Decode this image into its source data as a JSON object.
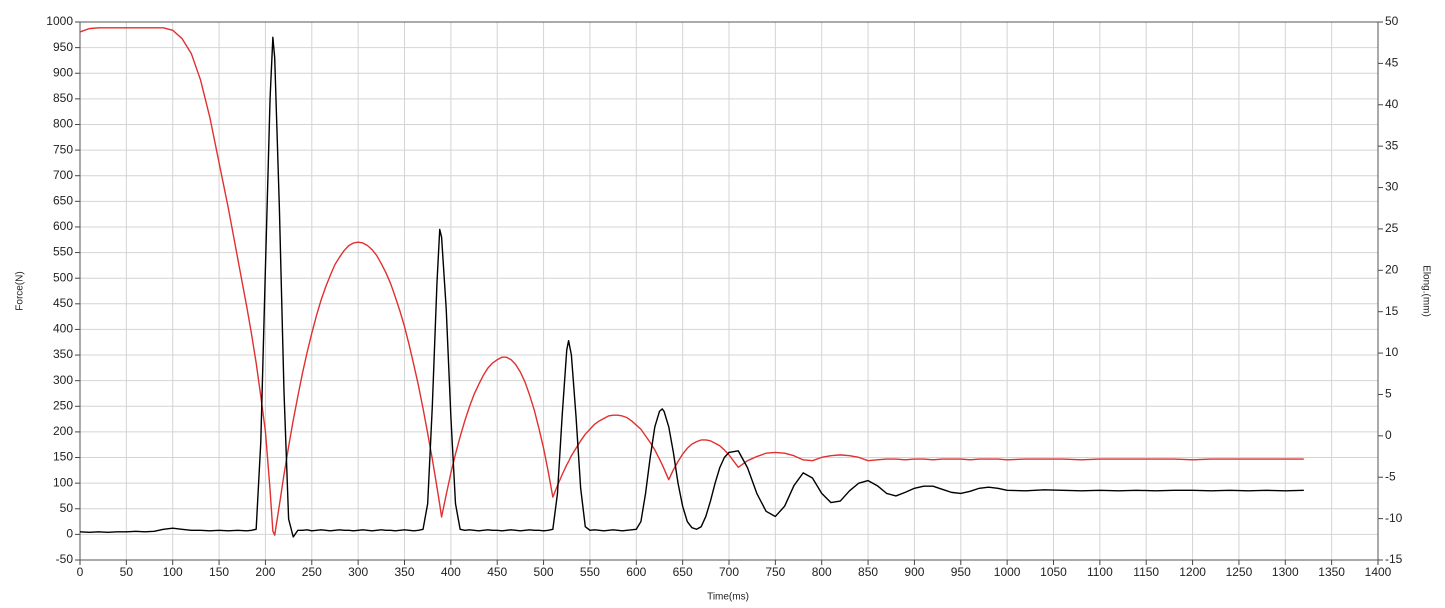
{
  "chart_data": {
    "type": "line",
    "xlabel": "Time(ms)",
    "ylabel": "Force(N)",
    "y2label": "Elong.(mm)",
    "x": [
      0,
      10,
      20,
      30,
      40,
      50,
      60,
      70,
      80,
      90,
      100,
      110,
      120,
      130,
      140,
      150,
      160,
      170,
      180,
      185,
      190,
      195,
      200,
      205,
      208,
      210,
      215,
      220,
      225,
      230,
      235,
      240,
      245,
      250,
      255,
      260,
      265,
      270,
      275,
      280,
      285,
      290,
      295,
      300,
      305,
      310,
      315,
      320,
      325,
      330,
      335,
      340,
      345,
      350,
      355,
      360,
      365,
      370,
      375,
      380,
      385,
      388,
      390,
      395,
      400,
      405,
      410,
      415,
      420,
      425,
      430,
      435,
      440,
      445,
      450,
      455,
      460,
      465,
      470,
      475,
      480,
      485,
      490,
      495,
      500,
      505,
      510,
      515,
      520,
      525,
      527,
      530,
      535,
      540,
      545,
      550,
      555,
      560,
      565,
      570,
      575,
      580,
      585,
      590,
      595,
      600,
      605,
      610,
      615,
      620,
      625,
      628,
      630,
      635,
      640,
      645,
      650,
      655,
      660,
      665,
      670,
      675,
      680,
      685,
      690,
      695,
      700,
      710,
      720,
      730,
      740,
      750,
      760,
      770,
      780,
      790,
      800,
      810,
      820,
      830,
      840,
      850,
      860,
      870,
      880,
      890,
      900,
      910,
      920,
      930,
      940,
      950,
      960,
      970,
      980,
      990,
      1000,
      1020,
      1040,
      1060,
      1080,
      1100,
      1120,
      1140,
      1160,
      1180,
      1200,
      1220,
      1240,
      1260,
      1280,
      1300,
      1320
    ],
    "series": [
      {
        "color": "#e03030",
        "axis": "y2",
        "values": [
          48.8,
          49.2,
          49.3,
          49.3,
          49.3,
          49.3,
          49.3,
          49.3,
          49.3,
          49.3,
          49.0,
          48.0,
          46.2,
          43.0,
          38.5,
          33.0,
          27.5,
          21.5,
          15.5,
          12.3,
          8.8,
          4.8,
          0.5,
          -6.5,
          -11.5,
          -12.0,
          -8.4,
          -4.7,
          -1.3,
          1.9,
          4.8,
          7.6,
          10.1,
          12.4,
          14.5,
          16.4,
          18.0,
          19.4,
          20.7,
          21.6,
          22.4,
          23.0,
          23.3,
          23.4,
          23.3,
          23.0,
          22.5,
          21.8,
          20.8,
          19.7,
          18.4,
          16.8,
          15.1,
          13.2,
          11.0,
          8.6,
          6.1,
          3.3,
          0.3,
          -2.8,
          -6.2,
          -8.3,
          -9.8,
          -7.1,
          -4.5,
          -2.2,
          -0.1,
          1.8,
          3.5,
          5.0,
          6.2,
          7.3,
          8.2,
          8.8,
          9.2,
          9.5,
          9.5,
          9.2,
          8.6,
          7.7,
          6.5,
          4.9,
          3.1,
          0.9,
          -1.5,
          -4.3,
          -7.4,
          -6.0,
          -4.7,
          -3.5,
          -3.1,
          -2.4,
          -1.5,
          -0.6,
          0.2,
          0.8,
          1.4,
          1.8,
          2.1,
          2.4,
          2.5,
          2.5,
          2.4,
          2.2,
          1.8,
          1.3,
          0.8,
          0.0,
          -0.8,
          -1.7,
          -2.8,
          -3.5,
          -4.0,
          -5.3,
          -4.1,
          -3.1,
          -2.2,
          -1.5,
          -1.0,
          -0.7,
          -0.5,
          -0.5,
          -0.6,
          -0.9,
          -1.2,
          -1.7,
          -2.3,
          -3.8,
          -3.0,
          -2.5,
          -2.1,
          -2.0,
          -2.1,
          -2.4,
          -2.9,
          -3.0,
          -2.6,
          -2.4,
          -2.3,
          -2.4,
          -2.6,
          -3.0,
          -2.9,
          -2.8,
          -2.8,
          -2.9,
          -2.8,
          -2.8,
          -2.9,
          -2.8,
          -2.8,
          -2.8,
          -2.9,
          -2.8,
          -2.8,
          -2.8,
          -2.9,
          -2.8,
          -2.8,
          -2.8,
          -2.9,
          -2.8,
          -2.8,
          -2.8,
          -2.8,
          -2.8,
          -2.9,
          -2.8,
          -2.8,
          -2.8,
          -2.8,
          -2.8,
          -2.8
        ]
      },
      {
        "color": "#000000",
        "axis": "y",
        "values": [
          5,
          4,
          5,
          4,
          5,
          5,
          6,
          5,
          6,
          10,
          12,
          10,
          8,
          8,
          7,
          8,
          7,
          8,
          7,
          8,
          10,
          180,
          520,
          850,
          970,
          930,
          640,
          280,
          30,
          -5,
          8,
          8,
          9,
          7,
          8,
          9,
          8,
          7,
          8,
          9,
          8,
          8,
          7,
          8,
          9,
          8,
          7,
          8,
          9,
          8,
          8,
          7,
          8,
          9,
          8,
          7,
          8,
          10,
          60,
          250,
          490,
          595,
          580,
          440,
          230,
          60,
          10,
          8,
          9,
          8,
          7,
          8,
          9,
          8,
          8,
          7,
          8,
          9,
          8,
          7,
          8,
          9,
          8,
          8,
          7,
          8,
          10,
          80,
          230,
          360,
          378,
          350,
          230,
          90,
          15,
          8,
          9,
          8,
          7,
          8,
          9,
          8,
          7,
          8,
          9,
          10,
          25,
          80,
          150,
          210,
          240,
          245,
          240,
          210,
          160,
          100,
          55,
          25,
          13,
          10,
          15,
          35,
          65,
          100,
          130,
          150,
          160,
          163,
          130,
          80,
          45,
          35,
          55,
          95,
          120,
          110,
          80,
          62,
          65,
          85,
          100,
          105,
          95,
          80,
          75,
          82,
          90,
          94,
          94,
          88,
          82,
          80,
          84,
          90,
          92,
          90,
          86,
          85,
          87,
          86,
          85,
          86,
          85,
          86,
          85,
          86,
          86,
          85,
          86,
          85,
          86,
          85,
          86
        ]
      }
    ],
    "xlim": [
      0,
      1400
    ],
    "xticks": [
      0,
      50,
      100,
      150,
      200,
      250,
      300,
      350,
      400,
      450,
      500,
      550,
      600,
      650,
      700,
      750,
      800,
      850,
      900,
      950,
      1000,
      1050,
      1100,
      1150,
      1200,
      1250,
      1300,
      1350,
      1400
    ],
    "ylim": [
      -50,
      1000
    ],
    "yticks": [
      -50,
      0,
      50,
      100,
      150,
      200,
      250,
      300,
      350,
      400,
      450,
      500,
      550,
      600,
      650,
      700,
      750,
      800,
      850,
      900,
      950,
      1000
    ],
    "y2lim": [
      -15,
      50
    ],
    "y2ticks": [
      -15,
      -10,
      -5,
      0,
      5,
      10,
      15,
      20,
      25,
      30,
      35,
      40,
      45,
      50
    ],
    "grid": true
  }
}
